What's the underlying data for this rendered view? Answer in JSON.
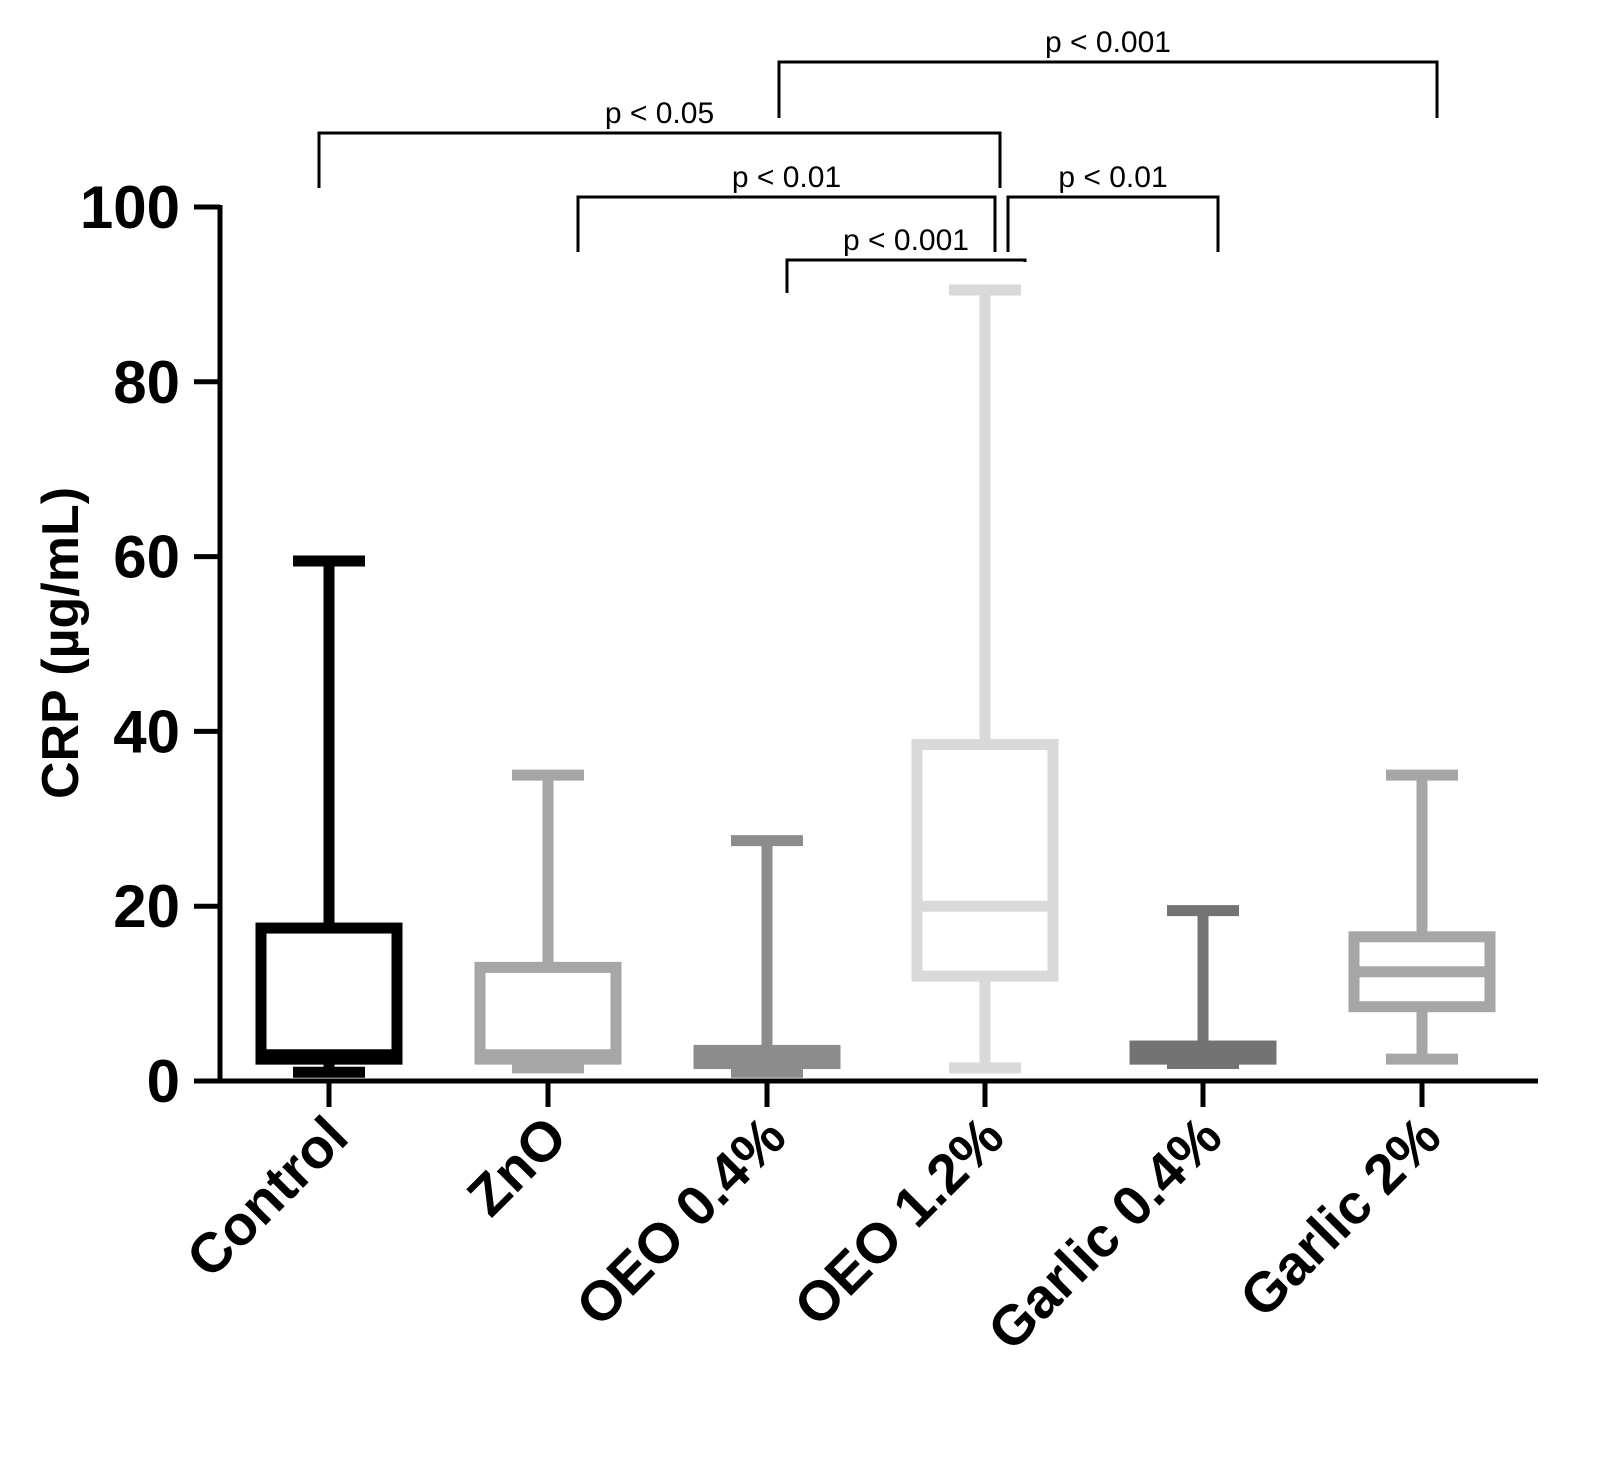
{
  "chart_data": {
    "type": "boxplot",
    "title": "",
    "xlabel": "",
    "ylabel": "CRP (µg/mL)",
    "ylim": [
      0,
      100
    ],
    "yticks": [
      "0",
      "20",
      "40",
      "60",
      "80",
      "100"
    ],
    "categories": [
      "Control",
      "ZnO",
      "OEO 0.4%",
      "OEO 1.2%",
      "Garlic 0.4%",
      "Garlic 2%"
    ],
    "series": [
      {
        "name": "Control",
        "min": 1.0,
        "q1": 2.5,
        "median": 3.0,
        "q3": 17.5,
        "max": 59.5,
        "color": "#000000"
      },
      {
        "name": "ZnO",
        "min": 1.5,
        "q1": 2.5,
        "median": 3.0,
        "q3": 13.0,
        "max": 35.0,
        "color": "#a6a6a6"
      },
      {
        "name": "OEO 0.4%",
        "min": 1.0,
        "q1": 2.0,
        "median": 2.5,
        "q3": 3.5,
        "max": 27.5,
        "color": "#8c8c8c"
      },
      {
        "name": "OEO 1.2%",
        "min": 1.5,
        "q1": 12.0,
        "median": 20.0,
        "q3": 38.5,
        "max": 90.5,
        "color": "#d9d9d9"
      },
      {
        "name": "Garlic 0.4%",
        "min": 2.0,
        "q1": 2.5,
        "median": 3.0,
        "q3": 4.0,
        "max": 19.5,
        "color": "#737373"
      },
      {
        "name": "Garlic 2%",
        "min": 2.5,
        "q1": 8.5,
        "median": 12.5,
        "q3": 16.5,
        "max": 35.0,
        "color": "#a6a6a6"
      }
    ],
    "significance": [
      {
        "from": "Control",
        "to": "OEO 1.2%",
        "label": "p < 0.05"
      },
      {
        "from": "OEO 0.4%",
        "to": "Garlic 2%",
        "label": "p < 0.001"
      },
      {
        "from": "ZnO",
        "to": "OEO 1.2%",
        "label": "p < 0.01"
      },
      {
        "from": "OEO 1.2%",
        "to": "Garlic 0.4%",
        "label": "p < 0.01"
      },
      {
        "from": "OEO 0.4%",
        "to": "OEO 1.2%",
        "label": "p < 0.001"
      }
    ]
  }
}
